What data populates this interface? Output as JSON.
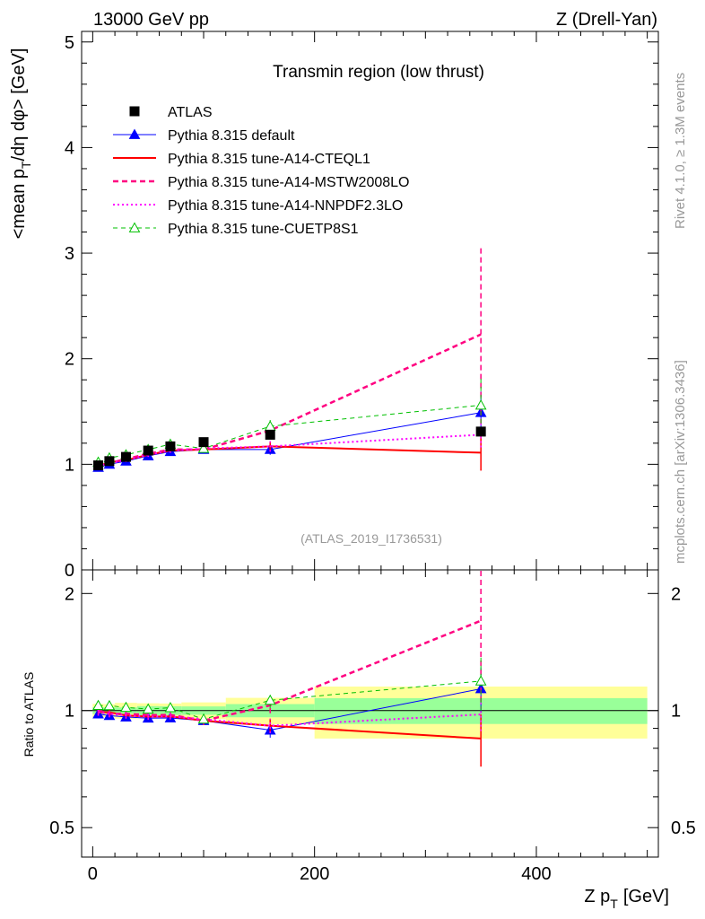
{
  "header": {
    "left": "13000 GeV pp",
    "right": "Z (Drell-Yan)"
  },
  "side_text": {
    "rivet": "Rivet 4.1.0, ≥ 1.3M events",
    "mcplots": "mcplots.cern.ch [arXiv:1306.3436]"
  },
  "colors": {
    "atlas": "#000000",
    "default": "#0000ff",
    "cteql1": "#ff0000",
    "mstw": "#ff0080",
    "nnpdf": "#ff00ff",
    "cuetp": "#00c000",
    "band_inner": "#99ff99",
    "band_outer": "#ffff99",
    "watermark": "#999999",
    "side": "#999999"
  },
  "chart_data": {
    "type": "line",
    "title": "Transmin region (low thrust)",
    "watermark": "(ATLAS_2019_I1736531)",
    "xlabel": "Z p_T [GeV]",
    "xlabel_main": "Z p",
    "xlabel_sub": "T",
    "xlabel_unit": "[GeV]",
    "ylabel": "<mean p_T/dη dφ> [GeV]",
    "ylabel_parts": {
      "pre": "<mean p",
      "sub": "T",
      "post": "/dη dφ> [GeV]"
    },
    "ratio_ylabel": "Ratio to ATLAS",
    "xlim": [
      -10,
      510
    ],
    "ylim": [
      0,
      5.1
    ],
    "ratio_ylim": [
      0.42,
      2.3
    ],
    "x_ticks": [
      0,
      200,
      400
    ],
    "y_ticks": [
      0,
      1,
      2,
      3,
      4,
      5
    ],
    "ratio_ticks": [
      0.5,
      1,
      2
    ],
    "ratio_tick_labels": [
      "0.5",
      "1",
      "2"
    ],
    "x": [
      5,
      15,
      30,
      50,
      70,
      100,
      160,
      350
    ],
    "data": {
      "name": "ATLAS",
      "values": [
        0.99,
        1.03,
        1.07,
        1.13,
        1.17,
        1.21,
        1.28,
        1.31
      ],
      "xerr": [
        5,
        5,
        10,
        10,
        10,
        20,
        40,
        150
      ],
      "band_inner": [
        0.02,
        0.02,
        0.02,
        0.03,
        0.03,
        0.03,
        0.05,
        0.1
      ],
      "band_outer": [
        0.04,
        0.04,
        0.05,
        0.05,
        0.05,
        0.06,
        0.1,
        0.2
      ]
    },
    "series": [
      {
        "name": "Pythia 8.315 default",
        "key": "default",
        "style": "solid",
        "marker": "tri-filled",
        "values": [
          0.97,
          1.0,
          1.03,
          1.08,
          1.12,
          1.14,
          1.14,
          1.49
        ],
        "errs": [
          0.02,
          0.02,
          0.02,
          0.02,
          0.02,
          0.03,
          0.05,
          0.2
        ]
      },
      {
        "name": "Pythia 8.315 tune-A14-CTEQL1",
        "key": "cteql1",
        "style": "solid-thick",
        "marker": "none",
        "values": [
          0.98,
          1.02,
          1.04,
          1.09,
          1.13,
          1.14,
          1.17,
          1.11
        ],
        "errs": [
          0.02,
          0.02,
          0.02,
          0.02,
          0.02,
          0.03,
          0.05,
          0.17
        ]
      },
      {
        "name": "Pythia 8.315 tune-A14-MSTW2008LO",
        "key": "mstw",
        "style": "dashed-thick",
        "marker": "none",
        "values": [
          0.99,
          1.01,
          1.05,
          1.1,
          1.14,
          1.14,
          1.32,
          2.23
        ],
        "errs": [
          0.02,
          0.02,
          0.02,
          0.02,
          0.02,
          0.03,
          0.06,
          0.85
        ]
      },
      {
        "name": "Pythia 8.315 tune-A14-NNPDF2.3LO",
        "key": "nnpdf",
        "style": "dotted",
        "marker": "none",
        "values": [
          0.98,
          1.01,
          1.04,
          1.09,
          1.13,
          1.15,
          1.17,
          1.28
        ],
        "errs": [
          0.02,
          0.02,
          0.02,
          0.02,
          0.02,
          0.03,
          0.05,
          0.12
        ]
      },
      {
        "name": "Pythia 8.315 tune-CUETP8S1",
        "key": "cuetp",
        "style": "dashed",
        "marker": "tri-open",
        "values": [
          1.02,
          1.06,
          1.09,
          1.14,
          1.19,
          1.15,
          1.36,
          1.56
        ],
        "errs": [
          0.02,
          0.02,
          0.02,
          0.02,
          0.02,
          0.03,
          0.06,
          0.25
        ]
      }
    ]
  }
}
